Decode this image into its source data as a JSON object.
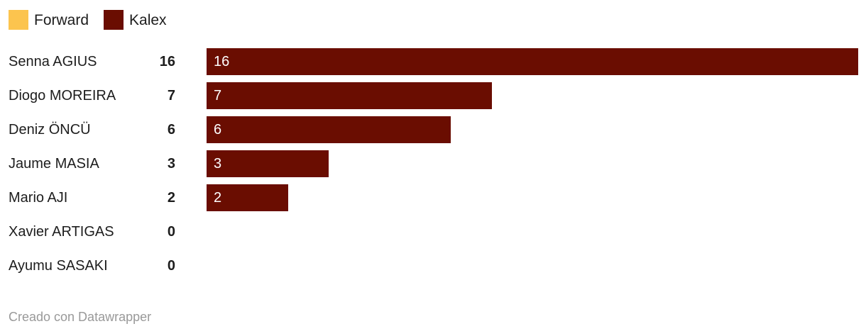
{
  "chart_data": {
    "type": "bar",
    "orientation": "horizontal",
    "categories": [
      "Senna AGIUS",
      "Diogo MOREIRA",
      "Deniz ÖNCÜ",
      "Jaume MASIA",
      "Mario AJI",
      "Xavier ARTIGAS",
      "Ayumu SASAKI"
    ],
    "values": [
      16,
      7,
      6,
      3,
      2,
      0,
      0
    ],
    "series": [
      {
        "name": "Kalex",
        "values": [
          16,
          7,
          6,
          3,
          2,
          0,
          0
        ]
      }
    ],
    "title": "",
    "xlabel": "",
    "ylabel": "",
    "xlim": [
      0,
      16
    ],
    "grid": false,
    "legend_position": "top",
    "legend": [
      {
        "label": "Forward",
        "color": "#FCC44E"
      },
      {
        "label": "Kalex",
        "color": "#6A0D01"
      }
    ]
  },
  "legend": {
    "items": [
      {
        "label": "Forward",
        "color": "#FCC44E"
      },
      {
        "label": "Kalex",
        "color": "#6A0D01"
      }
    ]
  },
  "rows": [
    {
      "label": "Senna AGIUS",
      "value": "16",
      "bar_label": "16"
    },
    {
      "label": "Diogo MOREIRA",
      "value": "7",
      "bar_label": "7"
    },
    {
      "label": "Deniz ÖNCÜ",
      "value": "6",
      "bar_label": "6"
    },
    {
      "label": "Jaume MASIA",
      "value": "3",
      "bar_label": "3"
    },
    {
      "label": "Mario AJI",
      "value": "2",
      "bar_label": "2"
    },
    {
      "label": "Xavier ARTIGAS",
      "value": "0",
      "bar_label": ""
    },
    {
      "label": "Ayumu SASAKI",
      "value": "0",
      "bar_label": ""
    }
  ],
  "footer": {
    "text": "Creado con Datawrapper"
  },
  "colors": {
    "bar": "#6A0D01",
    "forward": "#FCC44E",
    "text": "#1D1D1D",
    "bar_text": "#FFFFFF",
    "footer_text": "#999999",
    "background": "#FFFFFF"
  }
}
